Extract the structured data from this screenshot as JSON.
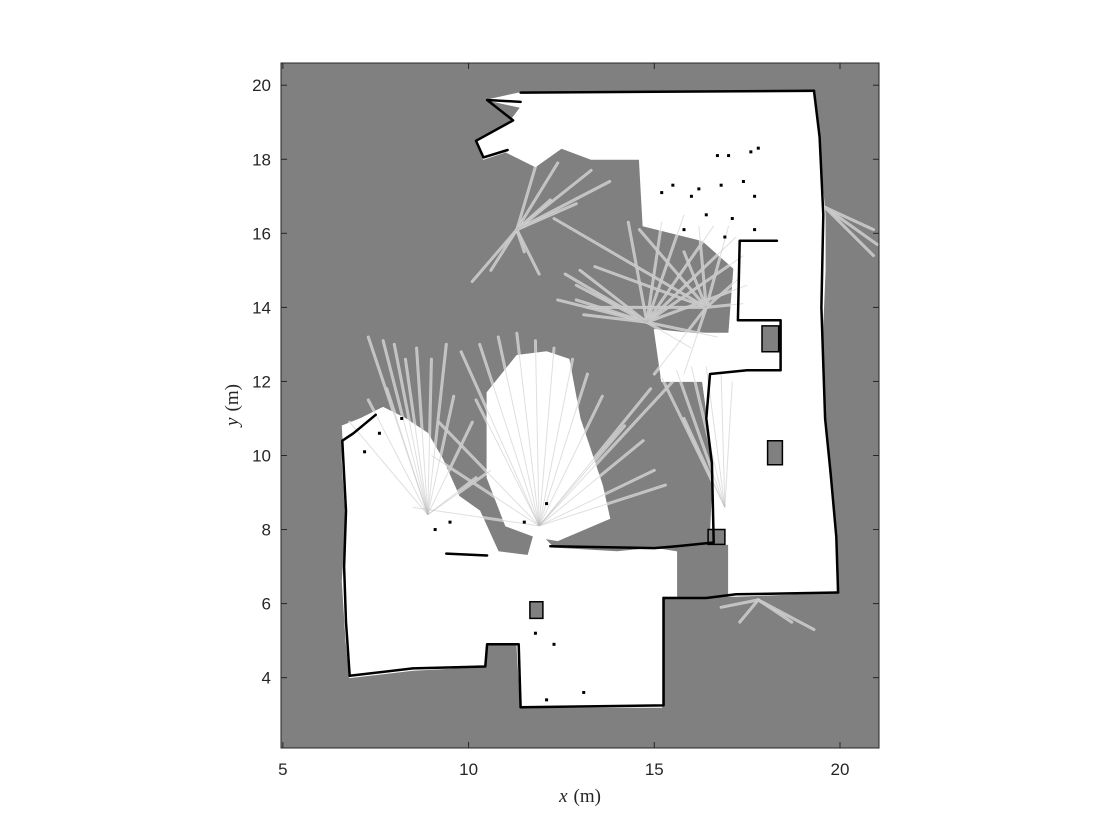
{
  "chart_data": {
    "type": "heatmap",
    "description_kind": "occupancy-grid-map",
    "xlabel": {
      "var": "x",
      "unit": "(m)"
    },
    "ylabel": {
      "var": "y",
      "unit": "(m)"
    },
    "xlim": [
      4.95,
      21.05
    ],
    "ylim": [
      2.1,
      20.6
    ],
    "xticks": [
      5,
      10,
      15,
      20
    ],
    "yticks": [
      4,
      6,
      8,
      10,
      12,
      14,
      16,
      18,
      20
    ],
    "colors": {
      "unknown": "#808080",
      "free": "#ffffff",
      "occupied": "#000000",
      "ray": "#d4d4d4",
      "axes_frame": "#262626"
    },
    "free_regions": [
      {
        "name": "top-room",
        "polygon": [
          [
            11.4,
            19.8
          ],
          [
            19.3,
            19.8
          ],
          [
            19.4,
            18.7
          ],
          [
            19.6,
            16.5
          ],
          [
            19.6,
            15.0
          ],
          [
            19.5,
            12.6
          ],
          [
            19.6,
            11.0
          ],
          [
            19.7,
            9.5
          ],
          [
            19.9,
            7.8
          ],
          [
            19.9,
            6.3
          ],
          [
            17.2,
            6.2
          ],
          [
            17.0,
            6.2
          ],
          [
            17.0,
            7.6
          ],
          [
            16.5,
            7.6
          ],
          [
            16.6,
            9.8
          ],
          [
            16.3,
            12.0
          ],
          [
            15.2,
            12.0
          ],
          [
            15.0,
            13.4
          ],
          [
            17.0,
            13.2
          ],
          [
            17.2,
            15.0
          ],
          [
            16.3,
            15.8
          ],
          [
            14.7,
            16.2
          ],
          [
            14.6,
            18.0
          ],
          [
            13.3,
            18.0
          ],
          [
            12.5,
            18.3
          ],
          [
            11.8,
            17.8
          ],
          [
            11.0,
            18.2
          ],
          [
            10.4,
            18.0
          ],
          [
            10.2,
            18.5
          ],
          [
            11.1,
            19.0
          ],
          [
            11.4,
            19.4
          ],
          [
            10.5,
            19.6
          ],
          [
            11.4,
            19.8
          ]
        ]
      },
      {
        "name": "east-corridor",
        "polygon": [
          [
            18.1,
            15.8
          ],
          [
            18.1,
            13.0
          ],
          [
            17.0,
            13.2
          ],
          [
            17.2,
            15.8
          ]
        ]
      },
      {
        "name": "lower-room",
        "polygon": [
          [
            6.8,
            10.6
          ],
          [
            7.3,
            10.8
          ],
          [
            7.7,
            11.1
          ],
          [
            8.6,
            10.1
          ],
          [
            9.6,
            9.0
          ],
          [
            10.3,
            8.5
          ],
          [
            10.8,
            7.4
          ],
          [
            11.6,
            7.3
          ],
          [
            11.8,
            8.0
          ],
          [
            12.3,
            7.5
          ],
          [
            14.0,
            7.4
          ],
          [
            15.0,
            7.5
          ],
          [
            15.6,
            7.4
          ],
          [
            15.6,
            6.2
          ],
          [
            15.2,
            6.2
          ],
          [
            15.2,
            3.2
          ],
          [
            11.4,
            3.2
          ],
          [
            11.3,
            4.9
          ],
          [
            10.5,
            4.9
          ],
          [
            10.4,
            4.3
          ],
          [
            8.5,
            4.2
          ],
          [
            6.8,
            4.0
          ],
          [
            6.7,
            5.0
          ],
          [
            6.6,
            6.6
          ],
          [
            6.7,
            8.2
          ],
          [
            6.6,
            9.8
          ],
          [
            6.6,
            10.4
          ],
          [
            6.8,
            10.6
          ]
        ]
      },
      {
        "name": "middle-room",
        "polygon": [
          [
            10.5,
            9.4
          ],
          [
            10.5,
            11.7
          ],
          [
            11.3,
            12.7
          ],
          [
            12.1,
            12.8
          ],
          [
            12.7,
            12.6
          ],
          [
            13.0,
            11.0
          ],
          [
            13.3,
            10.1
          ],
          [
            13.6,
            9.2
          ],
          [
            13.8,
            8.3
          ],
          [
            12.4,
            7.7
          ],
          [
            11.8,
            7.8
          ],
          [
            11.0,
            8.1
          ],
          [
            10.5,
            9.4
          ]
        ]
      },
      {
        "name": "west-wing",
        "polygon": [
          [
            6.6,
            10.8
          ],
          [
            7.1,
            11.0
          ],
          [
            7.7,
            11.3
          ],
          [
            8.3,
            11.0
          ],
          [
            8.9,
            10.6
          ],
          [
            9.3,
            9.9
          ],
          [
            9.7,
            9.0
          ],
          [
            10.0,
            8.2
          ],
          [
            9.6,
            7.4
          ],
          [
            8.9,
            7.4
          ],
          [
            8.0,
            7.6
          ],
          [
            7.2,
            8.0
          ],
          [
            6.7,
            8.8
          ],
          [
            6.6,
            10.8
          ]
        ]
      },
      {
        "name": "right-alcove",
        "polygon": [
          [
            16.6,
            9.9
          ],
          [
            16.9,
            12.0
          ],
          [
            17.4,
            12.3
          ],
          [
            17.3,
            13.3
          ],
          [
            16.2,
            13.3
          ],
          [
            16.3,
            12.0
          ],
          [
            16.6,
            9.9
          ]
        ]
      }
    ],
    "unknown_regions": [
      {
        "name": "obstacle-block-1",
        "polygon": [
          [
            18.05,
            10.4
          ],
          [
            18.45,
            10.4
          ],
          [
            18.45,
            9.75
          ],
          [
            18.05,
            9.75
          ]
        ]
      },
      {
        "name": "obstacle-block-2",
        "polygon": [
          [
            11.65,
            6.05
          ],
          [
            12.0,
            6.05
          ],
          [
            12.0,
            5.6
          ],
          [
            11.65,
            5.6
          ]
        ]
      },
      {
        "name": "table-block",
        "polygon": [
          [
            17.9,
            13.5
          ],
          [
            18.35,
            13.5
          ],
          [
            18.35,
            12.8
          ],
          [
            17.9,
            12.8
          ]
        ]
      },
      {
        "name": "post-block",
        "polygon": [
          [
            16.45,
            8.0
          ],
          [
            16.9,
            8.0
          ],
          [
            16.9,
            7.6
          ],
          [
            16.45,
            7.6
          ]
        ]
      }
    ],
    "occupied_lines": [
      {
        "name": "north-wall",
        "points": [
          [
            11.4,
            19.8
          ],
          [
            19.3,
            19.85
          ]
        ]
      },
      {
        "name": "east-wall",
        "points": [
          [
            19.3,
            19.85
          ],
          [
            19.45,
            18.6
          ],
          [
            19.55,
            16.5
          ],
          [
            19.5,
            14.0
          ],
          [
            19.6,
            11.0
          ],
          [
            19.75,
            9.5
          ],
          [
            19.9,
            7.8
          ],
          [
            19.95,
            6.3
          ]
        ]
      },
      {
        "name": "south-east-wall",
        "points": [
          [
            19.95,
            6.3
          ],
          [
            17.2,
            6.25
          ],
          [
            16.4,
            6.15
          ],
          [
            15.25,
            6.15
          ]
        ]
      },
      {
        "name": "south-wall",
        "points": [
          [
            15.25,
            6.15
          ],
          [
            15.25,
            3.25
          ],
          [
            11.4,
            3.2
          ],
          [
            11.35,
            4.9
          ],
          [
            10.5,
            4.9
          ],
          [
            10.45,
            4.3
          ],
          [
            8.5,
            4.25
          ],
          [
            6.8,
            4.05
          ]
        ]
      },
      {
        "name": "west-wall",
        "points": [
          [
            6.8,
            4.05
          ],
          [
            6.7,
            5.5
          ],
          [
            6.65,
            7.0
          ],
          [
            6.7,
            8.5
          ],
          [
            6.6,
            10.4
          ],
          [
            6.9,
            10.6
          ],
          [
            7.5,
            11.1
          ]
        ]
      },
      {
        "name": "inner-wall-1",
        "points": [
          [
            9.4,
            7.35
          ],
          [
            10.5,
            7.3
          ]
        ]
      },
      {
        "name": "inner-wall-2",
        "points": [
          [
            12.2,
            7.55
          ],
          [
            15.0,
            7.5
          ],
          [
            15.6,
            7.55
          ]
        ]
      },
      {
        "name": "inner-wall-3",
        "points": [
          [
            15.6,
            7.55
          ],
          [
            16.6,
            7.65
          ]
        ]
      },
      {
        "name": "right-inner-wall",
        "points": [
          [
            16.6,
            7.65
          ],
          [
            16.55,
            9.8
          ],
          [
            16.4,
            11.0
          ],
          [
            16.5,
            12.2
          ],
          [
            17.5,
            12.3
          ],
          [
            18.4,
            12.3
          ],
          [
            18.4,
            13.65
          ],
          [
            17.25,
            13.65
          ],
          [
            17.3,
            15.8
          ],
          [
            18.3,
            15.8
          ]
        ]
      },
      {
        "name": "upper-left-edge",
        "points": [
          [
            11.4,
            19.55
          ],
          [
            10.5,
            19.6
          ],
          [
            11.2,
            19.05
          ],
          [
            10.2,
            18.5
          ],
          [
            10.4,
            18.05
          ],
          [
            11.05,
            18.25
          ]
        ]
      }
    ],
    "occupied_dots": [
      [
        16.7,
        18.1
      ],
      [
        17.0,
        18.1
      ],
      [
        17.6,
        18.2
      ],
      [
        17.8,
        18.3
      ],
      [
        16.2,
        17.2
      ],
      [
        16.8,
        17.3
      ],
      [
        17.4,
        17.4
      ],
      [
        17.7,
        17.0
      ],
      [
        16.0,
        17.0
      ],
      [
        16.4,
        16.5
      ],
      [
        17.1,
        16.4
      ],
      [
        17.7,
        16.1
      ],
      [
        16.9,
        15.9
      ],
      [
        15.8,
        16.1
      ],
      [
        15.5,
        17.3
      ],
      [
        15.2,
        17.1
      ],
      [
        11.8,
        5.2
      ],
      [
        12.3,
        4.9
      ],
      [
        12.1,
        3.4
      ],
      [
        13.1,
        3.6
      ],
      [
        9.1,
        8.0
      ],
      [
        9.5,
        8.2
      ],
      [
        12.1,
        8.7
      ],
      [
        11.5,
        8.2
      ],
      [
        7.2,
        10.1
      ],
      [
        7.6,
        10.6
      ],
      [
        8.2,
        11.0
      ]
    ],
    "rays": [
      {
        "origin": [
          11.9,
          8.1
        ],
        "ends": [
          [
            9.8,
            12.8
          ],
          [
            10.3,
            13.0
          ],
          [
            10.8,
            13.2
          ],
          [
            11.3,
            13.3
          ],
          [
            11.8,
            13.1
          ],
          [
            12.3,
            12.9
          ],
          [
            12.8,
            12.6
          ],
          [
            13.2,
            12.2
          ],
          [
            13.6,
            11.6
          ],
          [
            14.2,
            10.8
          ],
          [
            14.7,
            10.4
          ],
          [
            15.0,
            9.6
          ],
          [
            15.3,
            9.2
          ],
          [
            14.9,
            11.8
          ],
          [
            15.5,
            12.0
          ],
          [
            9.2,
            10.9
          ],
          [
            9.0,
            10.0
          ],
          [
            8.5,
            8.6
          ],
          [
            10.2,
            11.5
          ]
        ]
      },
      {
        "origin": [
          8.9,
          8.4
        ],
        "ends": [
          [
            7.3,
            13.2
          ],
          [
            7.7,
            13.1
          ],
          [
            8.0,
            13.0
          ],
          [
            8.3,
            12.6
          ],
          [
            8.6,
            12.9
          ],
          [
            9.0,
            12.6
          ],
          [
            6.8,
            10.9
          ],
          [
            7.3,
            11.5
          ],
          [
            7.8,
            11.8
          ],
          [
            9.6,
            11.6
          ],
          [
            10.1,
            10.9
          ],
          [
            9.4,
            13.0
          ],
          [
            10.2,
            9.4
          ],
          [
            10.6,
            9.6
          ]
        ]
      },
      {
        "origin": [
          16.9,
          8.6
        ],
        "ends": [
          [
            15.2,
            12.1
          ],
          [
            15.6,
            12.3
          ],
          [
            16.0,
            12.4
          ],
          [
            16.4,
            12.4
          ],
          [
            16.8,
            12.2
          ],
          [
            17.1,
            12.0
          ],
          [
            15.8,
            11.0
          ]
        ]
      },
      {
        "origin": [
          14.8,
          13.6
        ],
        "ends": [
          [
            12.9,
            14.6
          ],
          [
            12.9,
            14.2
          ],
          [
            13.1,
            13.8
          ],
          [
            13.0,
            15.0
          ],
          [
            12.6,
            14.9
          ],
          [
            12.4,
            14.2
          ],
          [
            14.3,
            16.3
          ],
          [
            15.2,
            16.3
          ],
          [
            15.8,
            16.5
          ],
          [
            16.6,
            16.2
          ],
          [
            17.2,
            15.9
          ],
          [
            17.4,
            15.4
          ],
          [
            17.5,
            14.6
          ],
          [
            16.7,
            13.2
          ],
          [
            16.0,
            12.9
          ]
        ]
      },
      {
        "origin": [
          16.4,
          14.0
        ],
        "ends": [
          [
            14.6,
            16.1
          ],
          [
            16.2,
            16.2
          ],
          [
            17.0,
            16.2
          ],
          [
            15.8,
            15.5
          ],
          [
            17.3,
            14.8
          ],
          [
            17.4,
            14.1
          ],
          [
            13.4,
            15.1
          ],
          [
            12.3,
            16.4
          ],
          [
            13.2,
            14.0
          ],
          [
            15.0,
            12.2
          ],
          [
            15.8,
            12.2
          ]
        ]
      },
      {
        "origin": [
          11.3,
          16.1
        ],
        "ends": [
          [
            11.8,
            17.8
          ],
          [
            12.4,
            17.9
          ],
          [
            13.3,
            17.7
          ],
          [
            13.8,
            17.4
          ],
          [
            12.9,
            16.8
          ],
          [
            12.2,
            16.9
          ],
          [
            10.6,
            15.0
          ],
          [
            10.1,
            14.7
          ],
          [
            11.5,
            15.5
          ],
          [
            11.9,
            14.9
          ]
        ]
      },
      {
        "origin": [
          17.8,
          6.1
        ],
        "ends": [
          [
            19.3,
            5.3
          ],
          [
            18.7,
            5.5
          ],
          [
            17.3,
            5.5
          ],
          [
            16.8,
            5.9
          ]
        ]
      },
      {
        "origin": [
          19.6,
          16.7
        ],
        "ends": [
          [
            20.9,
            16.1
          ],
          [
            21.0,
            15.7
          ],
          [
            20.9,
            15.4
          ]
        ]
      }
    ]
  }
}
